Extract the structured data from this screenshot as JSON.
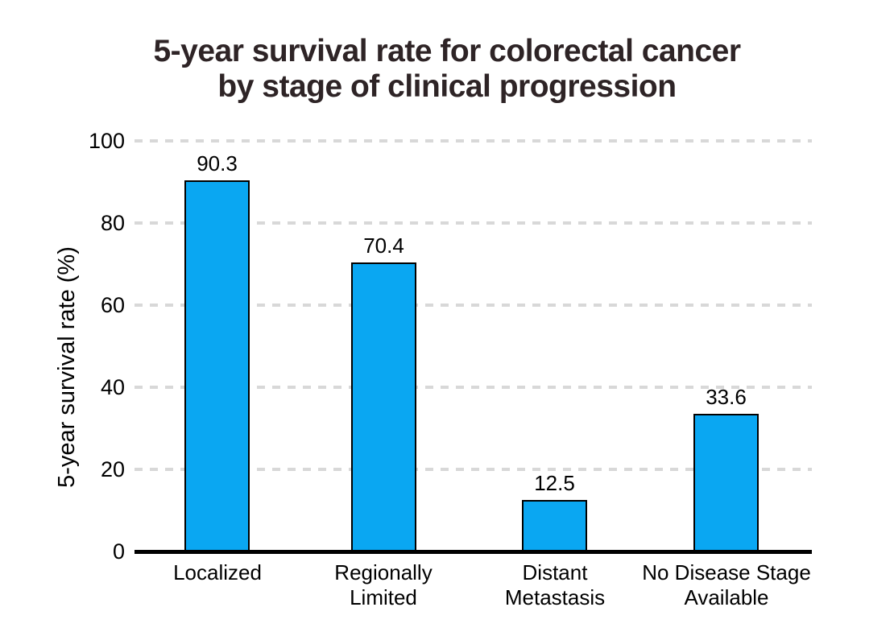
{
  "chart_data": {
    "type": "bar",
    "title": "5-year survival rate for colorectal cancer by stage of clinical progression",
    "title_lines": [
      "5-year survival rate for colorectal cancer",
      "by stage of clinical progression"
    ],
    "categories": [
      "Localized",
      "Regionally\nLimited",
      "Distant\nMetastasis",
      "No Disease Stage\nAvailable"
    ],
    "values": [
      90.3,
      70.4,
      12.5,
      33.6
    ],
    "xlabel": "",
    "ylabel": "5-year survival rate (%)",
    "ylim": [
      0,
      100
    ],
    "yticks": [
      100,
      80,
      60,
      40,
      20,
      0
    ],
    "grid": "horizontal-dashed",
    "legend_position": "none",
    "colors": {
      "bar_fill": "#0aa7f2",
      "bar_border": "#000000",
      "title_text": "#2e2426",
      "axis_text": "#000000",
      "gridline": "#d8d8d8",
      "axis_line": "#000000"
    }
  }
}
